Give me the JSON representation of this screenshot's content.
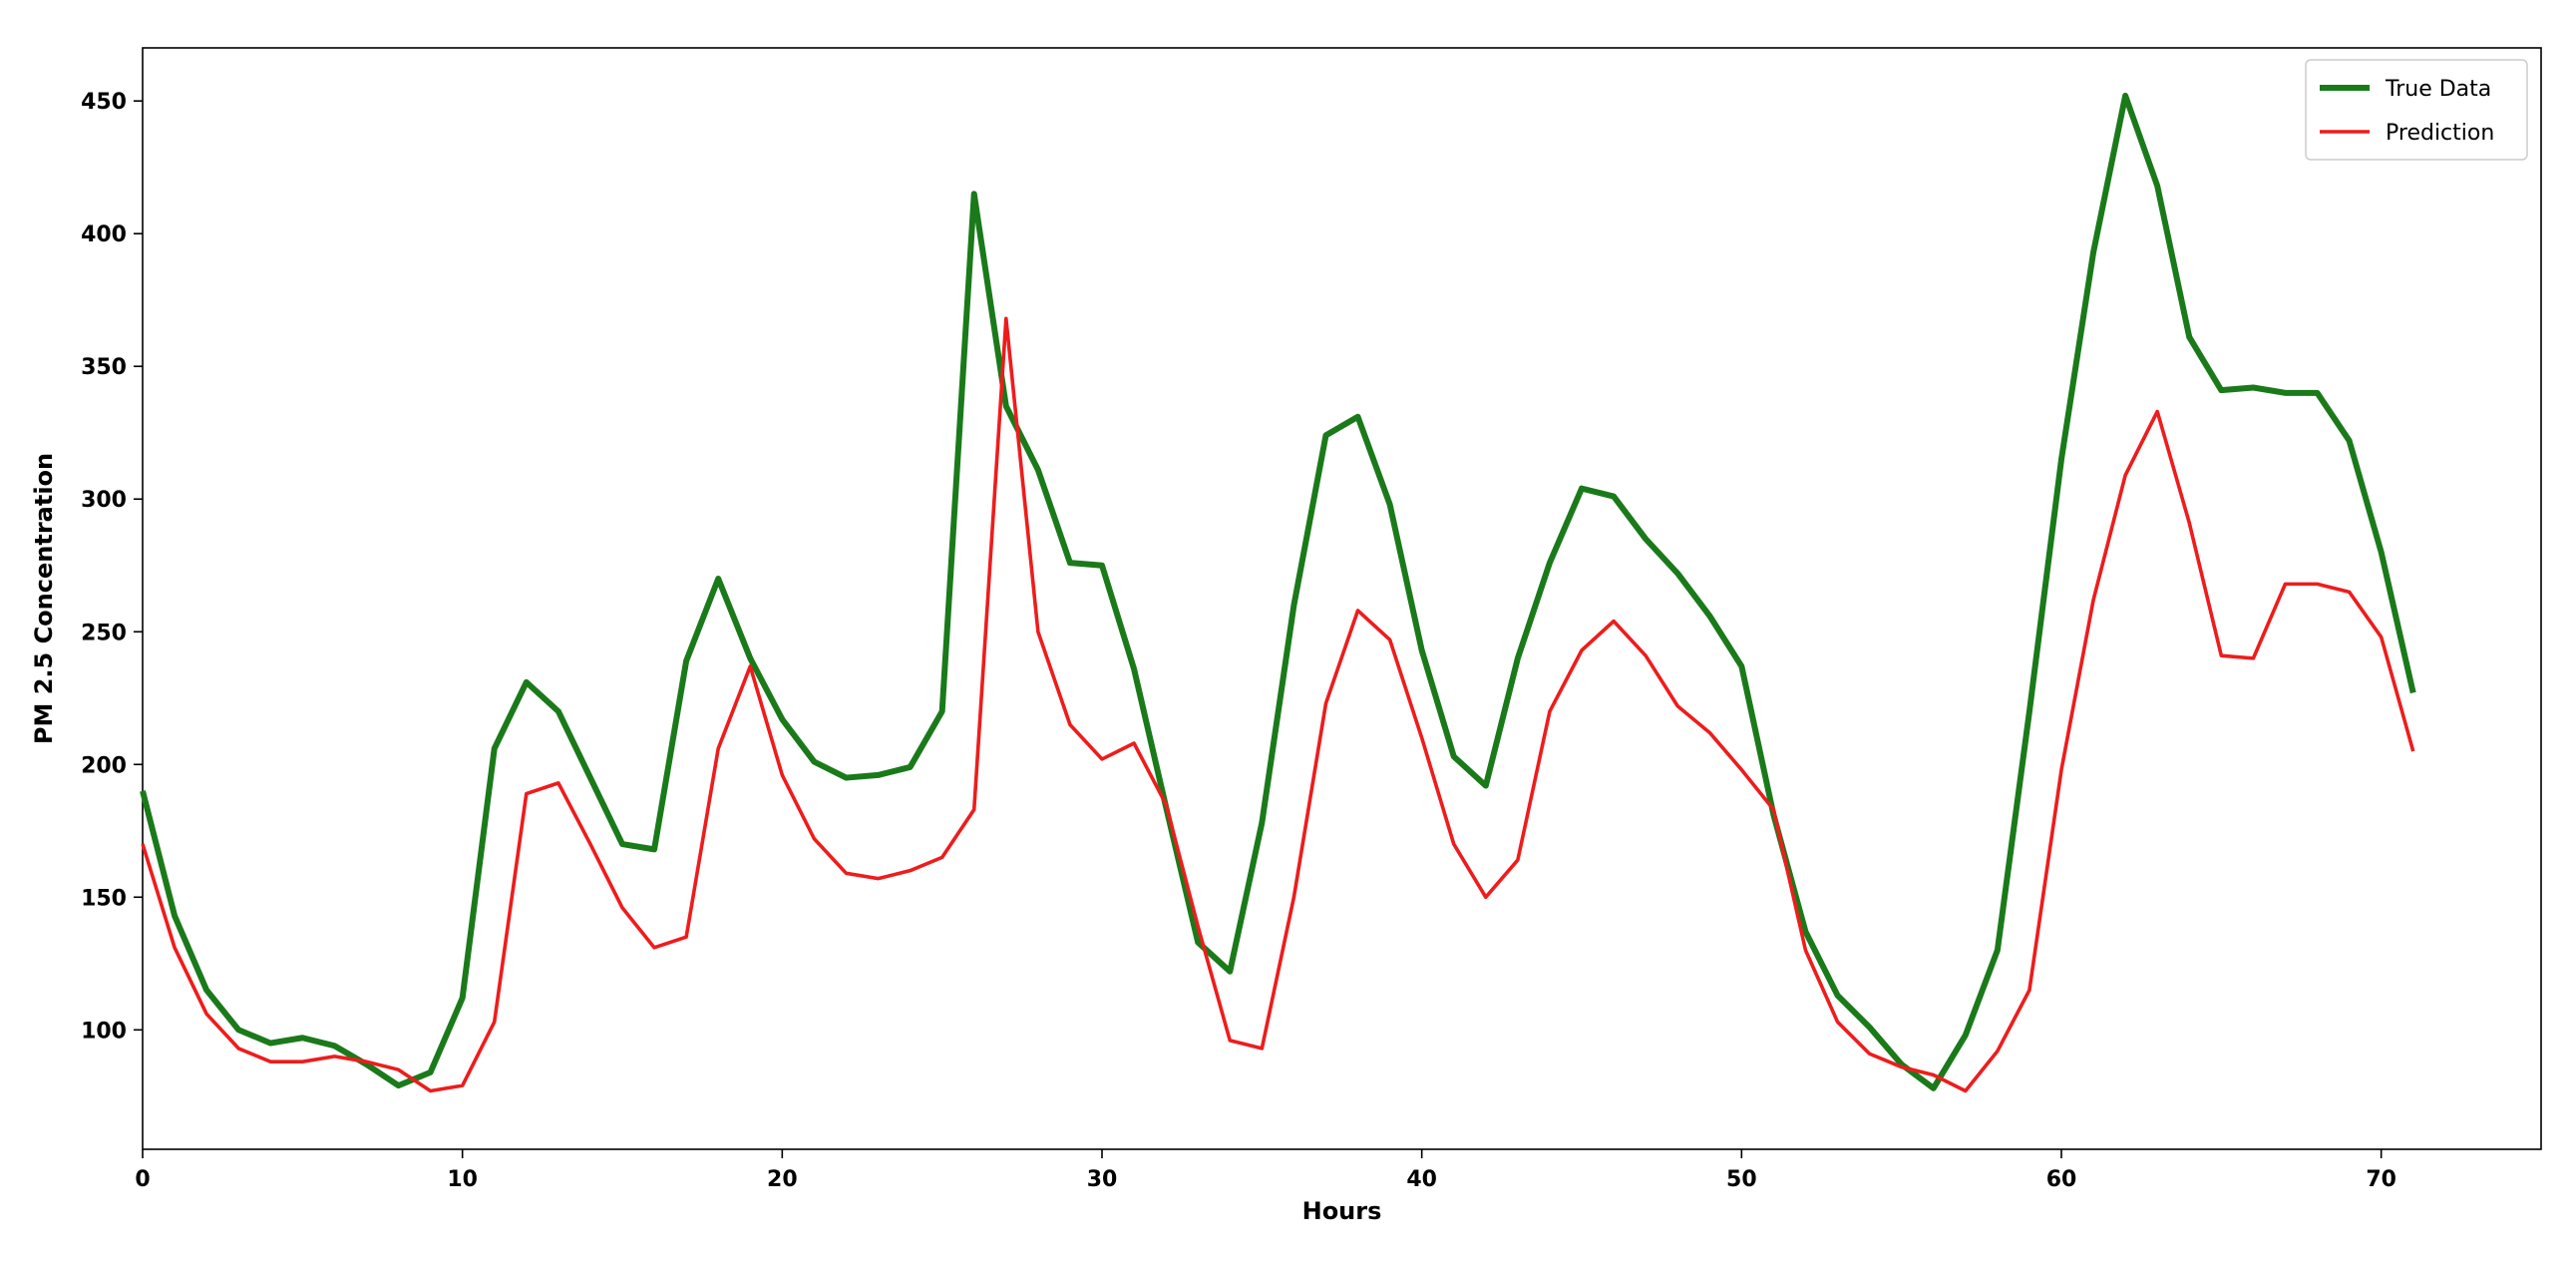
{
  "chart_data": {
    "type": "line",
    "title": "",
    "xlabel": "Hours",
    "ylabel": "PM 2.5 Concentration",
    "xlim": [
      0,
      75
    ],
    "ylim": [
      55,
      470
    ],
    "xticks": [
      0,
      10,
      20,
      30,
      40,
      50,
      60,
      70
    ],
    "yticks": [
      100,
      150,
      200,
      250,
      300,
      350,
      400,
      450
    ],
    "grid": false,
    "legend_position": "top-right",
    "x": [
      0,
      1,
      2,
      3,
      4,
      5,
      6,
      7,
      8,
      9,
      10,
      11,
      12,
      13,
      14,
      15,
      16,
      17,
      18,
      19,
      20,
      21,
      22,
      23,
      24,
      25,
      26,
      27,
      28,
      29,
      30,
      31,
      32,
      33,
      34,
      35,
      36,
      37,
      38,
      39,
      40,
      41,
      42,
      43,
      44,
      45,
      46,
      47,
      48,
      49,
      50,
      51,
      52,
      53,
      54,
      55,
      56,
      57,
      58,
      59,
      60,
      61,
      62,
      63,
      64,
      65,
      66,
      67,
      68,
      69,
      70,
      71
    ],
    "series": [
      {
        "name": "True Data",
        "color": "#1a7a1a",
        "values": [
          190,
          143,
          115,
          100,
          95,
          97,
          94,
          87,
          79,
          84,
          112,
          206,
          231,
          220,
          195,
          170,
          168,
          239,
          270,
          240,
          217,
          201,
          195,
          196,
          199,
          220,
          415,
          335,
          311,
          276,
          275,
          236,
          184,
          133,
          122,
          178,
          260,
          324,
          331,
          298,
          243,
          203,
          192,
          240,
          276,
          304,
          301,
          285,
          272,
          256,
          237,
          181,
          137,
          113,
          101,
          87,
          78,
          98,
          130,
          220,
          315,
          393,
          452,
          418,
          361,
          341,
          342,
          340,
          340,
          322,
          280,
          227
        ]
      },
      {
        "name": "Prediction",
        "color": "#ee1c1c",
        "values": [
          170,
          131,
          106,
          93,
          88,
          88,
          90,
          88,
          85,
          77,
          79,
          103,
          189,
          193,
          170,
          146,
          131,
          135,
          206,
          237,
          196,
          172,
          159,
          157,
          160,
          165,
          183,
          368,
          250,
          215,
          202,
          208,
          185,
          139,
          96,
          93,
          150,
          223,
          258,
          247,
          210,
          170,
          150,
          164,
          220,
          243,
          254,
          241,
          222,
          212,
          198,
          183,
          130,
          103,
          91,
          86,
          83,
          77,
          92,
          115,
          198,
          262,
          309,
          333,
          291,
          241,
          240,
          268,
          268,
          265,
          248,
          205
        ]
      }
    ]
  }
}
